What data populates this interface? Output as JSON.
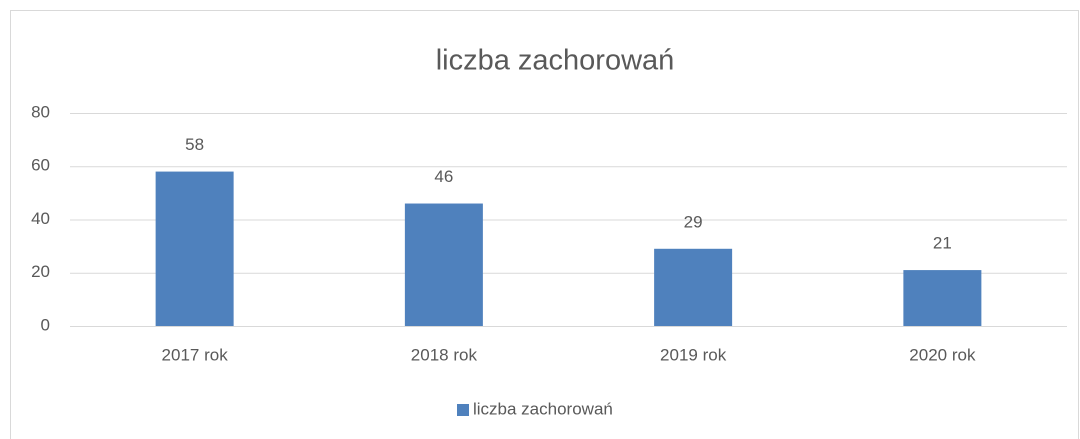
{
  "chart_data": {
    "type": "bar",
    "title": "liczba zachorowań",
    "categories": [
      "2017 rok",
      "2018 rok",
      "2019 rok",
      "2020 rok"
    ],
    "series": [
      {
        "name": "liczba zachorowań",
        "color": "#4f81bd",
        "values": [
          58,
          46,
          29,
          21
        ]
      }
    ],
    "ylim": [
      0,
      80
    ],
    "yticks": [
      0,
      20,
      40,
      60,
      80
    ],
    "grid": true,
    "legend": "bottom"
  }
}
